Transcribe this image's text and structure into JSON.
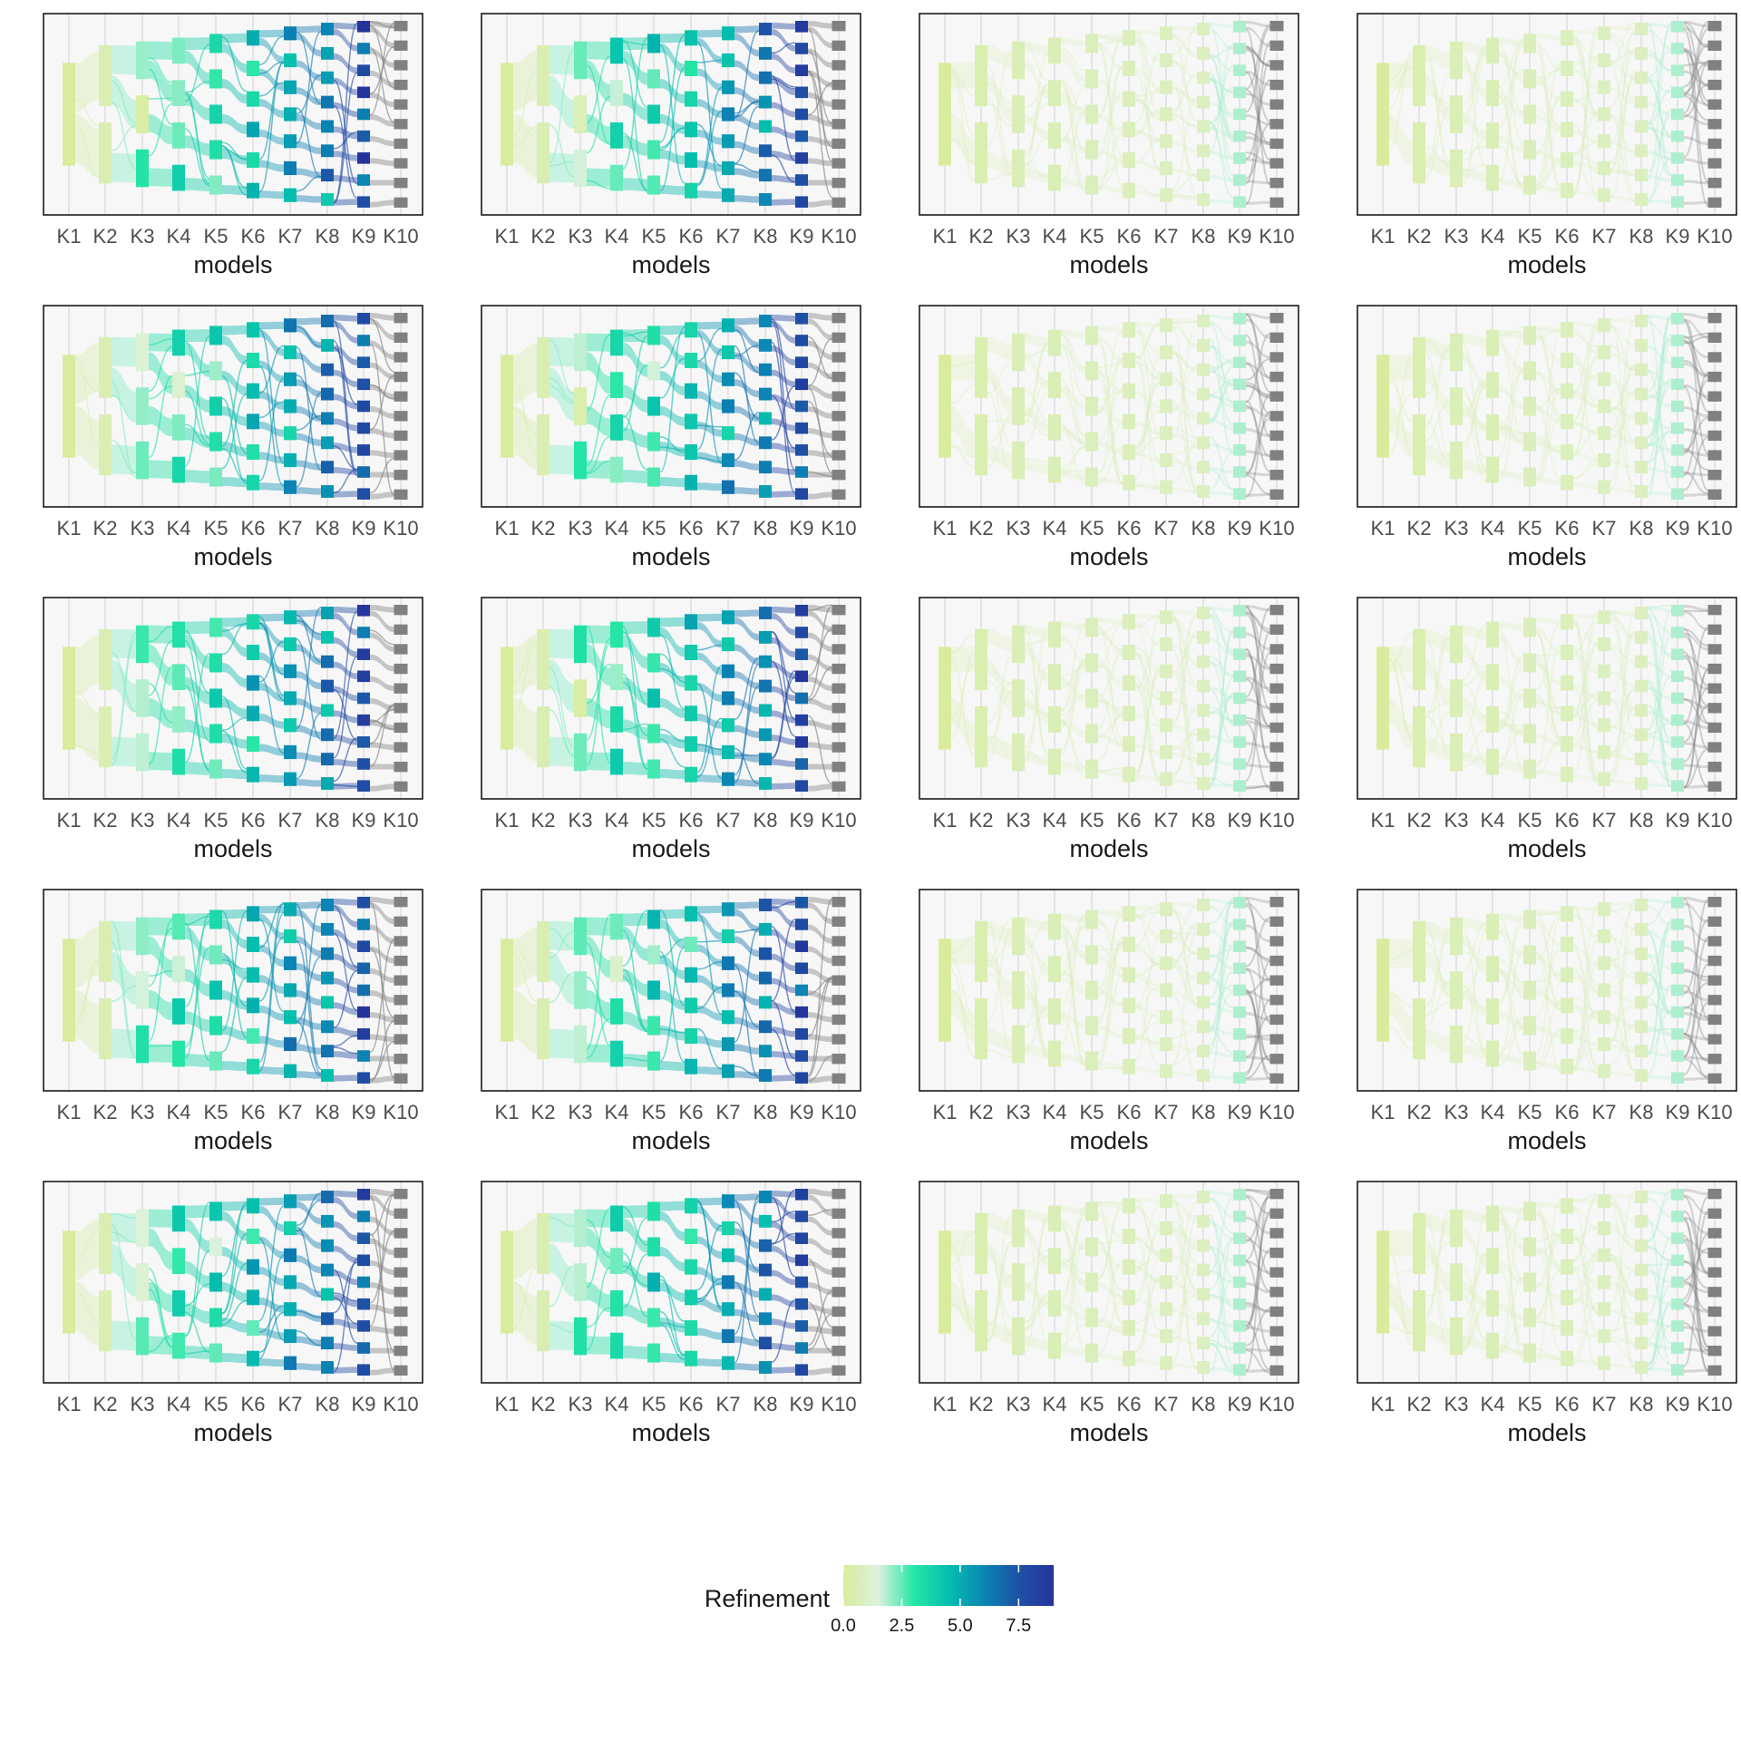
{
  "chart_data": {
    "type": "sankey-grid",
    "rows": 5,
    "cols": 4,
    "models": [
      "K1",
      "K2",
      "K3",
      "K4",
      "K5",
      "K6",
      "K7",
      "K8",
      "K9",
      "K10"
    ],
    "cluster_counts": [
      1,
      2,
      3,
      4,
      5,
      6,
      7,
      8,
      9,
      10
    ],
    "xlabel": "models",
    "color_scale": {
      "title": "Refinement",
      "min": 0,
      "max": 9,
      "ticks": [
        "0.0",
        "2.5",
        "5.0",
        "7.5"
      ],
      "tick_values": [
        0,
        2.5,
        5,
        7.5
      ],
      "colors": [
        "#d9ec9e",
        "#dcf2dc",
        "#27e6a6",
        "#05bfae",
        "#0a86b4",
        "#1e51a6",
        "#24349c"
      ],
      "terminal_color": "#808080"
    },
    "panel_columns": [
      {
        "column": 1,
        "pattern": "high refinement",
        "refinement_by_model": [
          0,
          0.5,
          2.2,
          3.2,
          3.8,
          4.6,
          5.6,
          6.4,
          8.0,
          null
        ]
      },
      {
        "column": 2,
        "pattern": "high refinement",
        "refinement_by_model": [
          0,
          0.5,
          2.2,
          3.2,
          3.8,
          4.6,
          5.6,
          6.6,
          8.2,
          null
        ]
      },
      {
        "column": 3,
        "pattern": "low refinement",
        "refinement_by_model": [
          0,
          0.4,
          0.6,
          0.6,
          0.7,
          0.7,
          0.8,
          0.8,
          1.9,
          null
        ]
      },
      {
        "column": 4,
        "pattern": "low refinement",
        "refinement_by_model": [
          0,
          0.4,
          0.6,
          0.6,
          0.7,
          0.7,
          0.8,
          0.8,
          1.9,
          null
        ]
      }
    ]
  }
}
